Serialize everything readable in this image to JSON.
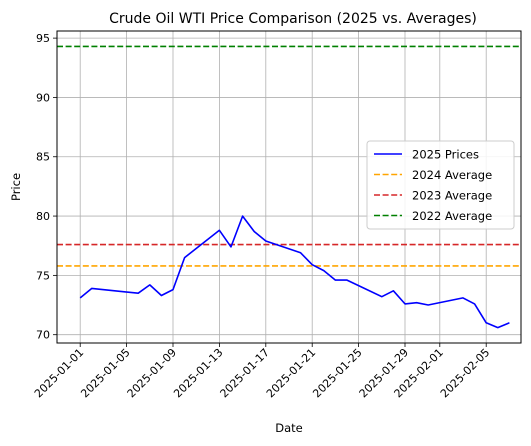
{
  "chart_data": {
    "type": "line",
    "title": "Crude Oil WTI Price Comparison (2025 vs. Averages)",
    "xlabel": "Date",
    "ylabel": "Price",
    "xlim": [
      "2024-12-30",
      "2025-02-08"
    ],
    "ylim": [
      69.3,
      95.6
    ],
    "x_ticks": [
      "2025-01-01",
      "2025-01-05",
      "2025-01-09",
      "2025-01-13",
      "2025-01-17",
      "2025-01-21",
      "2025-01-25",
      "2025-01-29",
      "2025-02-01",
      "2025-02-05"
    ],
    "y_ticks": [
      70,
      75,
      80,
      85,
      90,
      95
    ],
    "grid": true,
    "legend_position": "center-right",
    "series": [
      {
        "name": "2025 Prices",
        "color": "#0000ff",
        "style": "solid",
        "x": [
          "2025-01-01",
          "2025-01-02",
          "2025-01-06",
          "2025-01-07",
          "2025-01-08",
          "2025-01-09",
          "2025-01-10",
          "2025-01-13",
          "2025-01-14",
          "2025-01-15",
          "2025-01-16",
          "2025-01-17",
          "2025-01-20",
          "2025-01-21",
          "2025-01-22",
          "2025-01-23",
          "2025-01-24",
          "2025-01-27",
          "2025-01-28",
          "2025-01-29",
          "2025-01-30",
          "2025-01-31",
          "2025-02-03",
          "2025-02-04",
          "2025-02-05",
          "2025-02-06",
          "2025-02-07"
        ],
        "values": [
          73.1,
          73.9,
          73.5,
          74.2,
          73.3,
          73.8,
          76.5,
          78.8,
          77.4,
          80.0,
          78.7,
          77.9,
          76.9,
          75.9,
          75.4,
          74.6,
          74.6,
          73.2,
          73.7,
          72.6,
          72.7,
          72.5,
          73.1,
          72.6,
          71.0,
          70.6,
          71.0
        ]
      },
      {
        "name": "2024 Average",
        "color": "#ffa500",
        "style": "dashed",
        "constant": 75.8
      },
      {
        "name": "2023 Average",
        "color": "#d62728",
        "style": "dashed",
        "constant": 77.6
      },
      {
        "name": "2022 Average",
        "color": "#008000",
        "style": "dashed",
        "constant": 94.3
      }
    ]
  }
}
